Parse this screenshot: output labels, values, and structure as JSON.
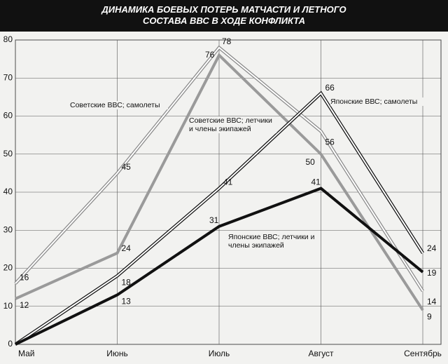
{
  "chart_data": {
    "type": "line",
    "title": "ДИНАМИКА БОЕВЫХ ПОТЕРЬ МАТЧАСТИ И ЛЕТНОГО СОСТАВА ВВС В ХОДЕ КОНФЛИКТА",
    "categories": [
      "Май",
      "Июнь",
      "Июль",
      "Август",
      "Сентябрь"
    ],
    "ylim": [
      0,
      80
    ],
    "yticks": [
      0,
      10,
      20,
      30,
      40,
      50,
      60,
      70,
      80
    ],
    "grid": true,
    "series": [
      {
        "name": "Советские ВВС; самолеты",
        "color": "#ffffff",
        "edge_color": "#8a8a8a",
        "values": [
          16,
          45,
          78,
          56,
          14
        ]
      },
      {
        "name": "Советские ВВС; летчики и члены экипажей",
        "color": "#9a9a9a",
        "values": [
          12,
          24,
          76,
          50,
          9
        ]
      },
      {
        "name": "Японские ВВС; самолеты",
        "color": "#ffffff",
        "edge_color": "#111111",
        "values": [
          0,
          18,
          41,
          66,
          24
        ],
        "value_labels": [
          null,
          "18",
          "41",
          "66",
          "24"
        ]
      },
      {
        "name": "Японские ВВС; летчики и члены экипажей",
        "color": "#111111",
        "values": [
          0,
          13,
          31,
          41,
          19
        ],
        "value_labels": [
          null,
          "13",
          "31",
          "41",
          "19"
        ]
      }
    ]
  }
}
